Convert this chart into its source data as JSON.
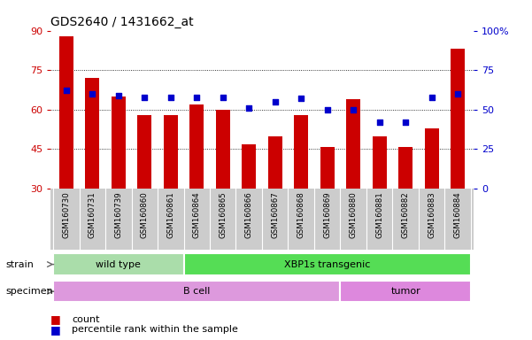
{
  "title": "GDS2640 / 1431662_at",
  "samples": [
    "GSM160730",
    "GSM160731",
    "GSM160739",
    "GSM160860",
    "GSM160861",
    "GSM160864",
    "GSM160865",
    "GSM160866",
    "GSM160867",
    "GSM160868",
    "GSM160869",
    "GSM160880",
    "GSM160881",
    "GSM160882",
    "GSM160883",
    "GSM160884"
  ],
  "counts": [
    88,
    72,
    65,
    58,
    58,
    62,
    60,
    47,
    50,
    58,
    46,
    64,
    50,
    46,
    53,
    83
  ],
  "percentiles": [
    62,
    60,
    59,
    58,
    58,
    58,
    58,
    51,
    55,
    57,
    50,
    50,
    42,
    42,
    58,
    60
  ],
  "ymin": 30,
  "ymax": 90,
  "yticks": [
    30,
    45,
    60,
    75,
    90
  ],
  "y2ticks": [
    0,
    25,
    50,
    75,
    100
  ],
  "bar_color": "#cc0000",
  "dot_color": "#0000cc",
  "bar_width": 0.55,
  "strain_groups": [
    {
      "label": "wild type",
      "start": 0,
      "end": 4,
      "color": "#aaddaa"
    },
    {
      "label": "XBP1s transgenic",
      "start": 5,
      "end": 15,
      "color": "#55dd55"
    }
  ],
  "specimen_groups": [
    {
      "label": "B cell",
      "start": 0,
      "end": 10,
      "color": "#dd99dd"
    },
    {
      "label": "tumor",
      "start": 11,
      "end": 15,
      "color": "#dd88dd"
    }
  ],
  "legend_count_label": "count",
  "legend_pct_label": "percentile rank within the sample",
  "bg_color": "#ffffff",
  "tick_label_color_left": "#cc0000",
  "tick_label_color_right": "#0000cc",
  "xlabel_bg": "#cccccc"
}
